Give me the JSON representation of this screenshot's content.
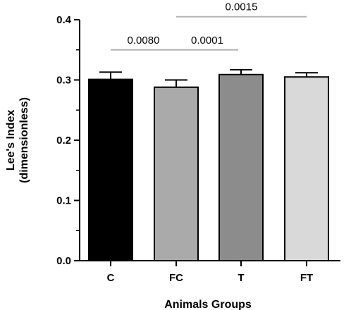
{
  "chart_data": {
    "type": "bar",
    "title": "",
    "xlabel": "Animals Groups",
    "ylabel": [
      "Lee's Index",
      "(dimensionless)"
    ],
    "ylim": [
      0,
      0.4
    ],
    "yticks": [
      "0.0",
      "0.1",
      "0.2",
      "0.3",
      "0.4"
    ],
    "ytick_values": [
      0,
      0.1,
      0.2,
      0.3,
      0.4
    ],
    "categories": [
      "C",
      "FC",
      "T",
      "FT"
    ],
    "values": [
      0.301,
      0.288,
      0.309,
      0.305
    ],
    "errors": [
      0.012,
      0.012,
      0.008,
      0.007
    ],
    "bar_colors": [
      "#000000",
      "#aaaaaa",
      "#8c8c8c",
      "#d9d9d9"
    ],
    "grid": false,
    "significance": [
      {
        "from": "C",
        "to": "FC",
        "label": "0.0080",
        "level": 0.35
      },
      {
        "from": "FC",
        "to": "T",
        "label": "0.0001",
        "level": 0.35
      },
      {
        "from": "FC",
        "to": "FT",
        "label": "0.0015",
        "level": 0.405
      }
    ],
    "bracket_color": "#b3b3b3"
  }
}
